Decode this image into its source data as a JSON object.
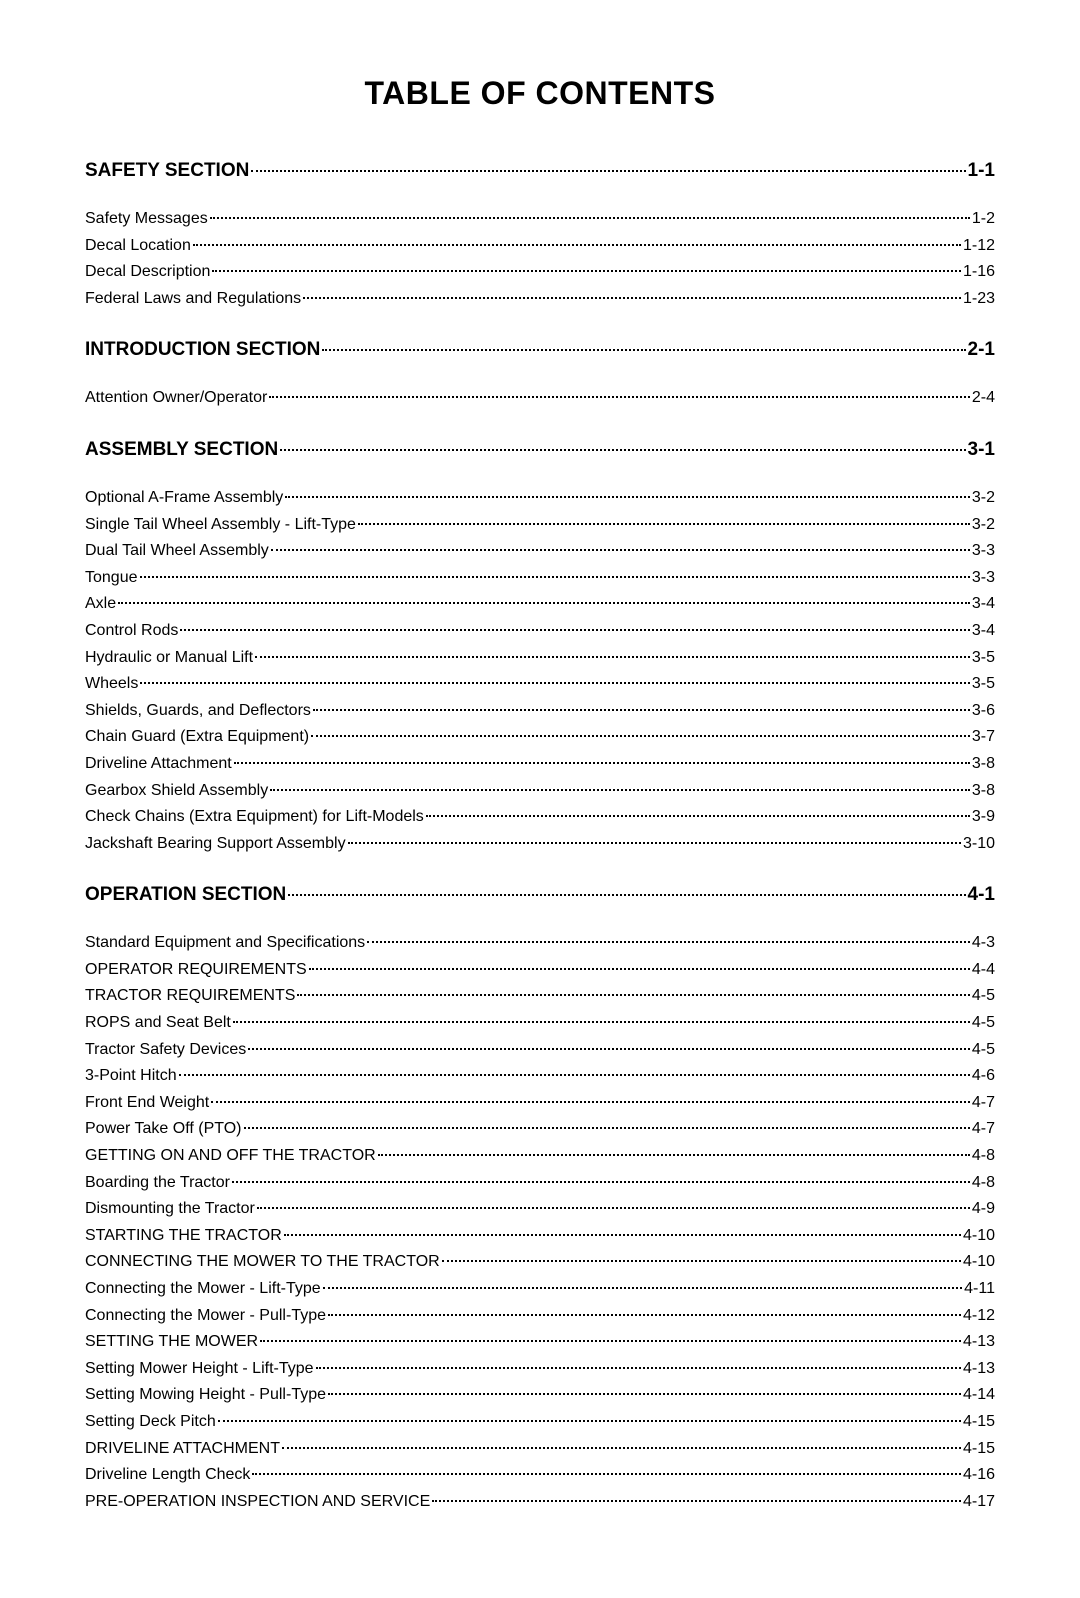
{
  "title": "TABLE OF CONTENTS",
  "colors": {
    "background": "#ffffff",
    "text": "#000000",
    "leader": "#000000"
  },
  "typography": {
    "font_family": "Arial, Helvetica, sans-serif",
    "title_fontsize": 32,
    "section_fontsize": 19,
    "entry_fontsize": 16
  },
  "sections": [
    {
      "heading": "SAFETY SECTION",
      "page": "1-1",
      "entries": [
        {
          "label": "Safety Messages",
          "page": "1-2"
        },
        {
          "label": "Decal Location",
          "page": "1-12"
        },
        {
          "label": "Decal Description",
          "page": "1-16"
        },
        {
          "label": "Federal Laws and Regulations",
          "page": "1-23"
        }
      ]
    },
    {
      "heading": "INTRODUCTION SECTION",
      "page": "2-1",
      "entries": [
        {
          "label": "Attention Owner/Operator",
          "page": "2-4"
        }
      ]
    },
    {
      "heading": "ASSEMBLY SECTION",
      "page": "3-1",
      "entries": [
        {
          "label": "Optional A-Frame Assembly",
          "page": "3-2"
        },
        {
          "label": "Single Tail Wheel Assembly - Lift-Type",
          "page": "3-2"
        },
        {
          "label": "Dual Tail Wheel Assembly",
          "page": "3-3"
        },
        {
          "label": "Tongue",
          "page": "3-3"
        },
        {
          "label": "Axle",
          "page": "3-4"
        },
        {
          "label": "Control Rods",
          "page": "3-4"
        },
        {
          "label": "Hydraulic or Manual Lift",
          "page": "3-5"
        },
        {
          "label": "Wheels",
          "page": "3-5"
        },
        {
          "label": "Shields, Guards, and Deflectors",
          "page": "3-6"
        },
        {
          "label": "Chain Guard (Extra Equipment)",
          "page": "3-7"
        },
        {
          "label": "Driveline Attachment",
          "page": "3-8"
        },
        {
          "label": "Gearbox Shield Assembly",
          "page": "3-8"
        },
        {
          "label": "Check Chains (Extra Equipment) for Lift-Models",
          "page": "3-9"
        },
        {
          "label": "Jackshaft Bearing Support Assembly",
          "page": "3-10"
        }
      ]
    },
    {
      "heading": "OPERATION SECTION",
      "page": "4-1",
      "entries": [
        {
          "label": "Standard Equipment and Specifications",
          "page": "4-3"
        },
        {
          "label": "OPERATOR REQUIREMENTS",
          "page": "4-4"
        },
        {
          "label": "TRACTOR REQUIREMENTS",
          "page": "4-5"
        },
        {
          "label": "ROPS and Seat Belt",
          "page": "4-5"
        },
        {
          "label": "Tractor Safety Devices",
          "page": "4-5"
        },
        {
          "label": "3-Point Hitch",
          "page": "4-6"
        },
        {
          "label": "Front End Weight",
          "page": "4-7"
        },
        {
          "label": "Power Take Off (PTO)",
          "page": "4-7"
        },
        {
          "label": "GETTING ON AND OFF THE TRACTOR",
          "page": "4-8"
        },
        {
          "label": "Boarding the Tractor",
          "page": "4-8"
        },
        {
          "label": "Dismounting the Tractor",
          "page": "4-9"
        },
        {
          "label": "STARTING THE TRACTOR",
          "page": "4-10"
        },
        {
          "label": "CONNECTING THE MOWER TO THE TRACTOR",
          "page": "4-10"
        },
        {
          "label": "Connecting the Mower - Lift-Type",
          "page": "4-11"
        },
        {
          "label": "Connecting the Mower - Pull-Type",
          "page": "4-12"
        },
        {
          "label": "SETTING THE MOWER",
          "page": "4-13"
        },
        {
          "label": "Setting Mower Height - Lift-Type",
          "page": "4-13"
        },
        {
          "label": "Setting Mowing Height - Pull-Type",
          "page": "4-14"
        },
        {
          "label": "Setting Deck Pitch",
          "page": "4-15"
        },
        {
          "label": "DRIVELINE ATTACHMENT",
          "page": "4-15"
        },
        {
          "label": "Driveline Length Check",
          "page": "4-16"
        },
        {
          "label": "PRE-OPERATION INSPECTION AND SERVICE",
          "page": "4-17"
        }
      ]
    }
  ]
}
